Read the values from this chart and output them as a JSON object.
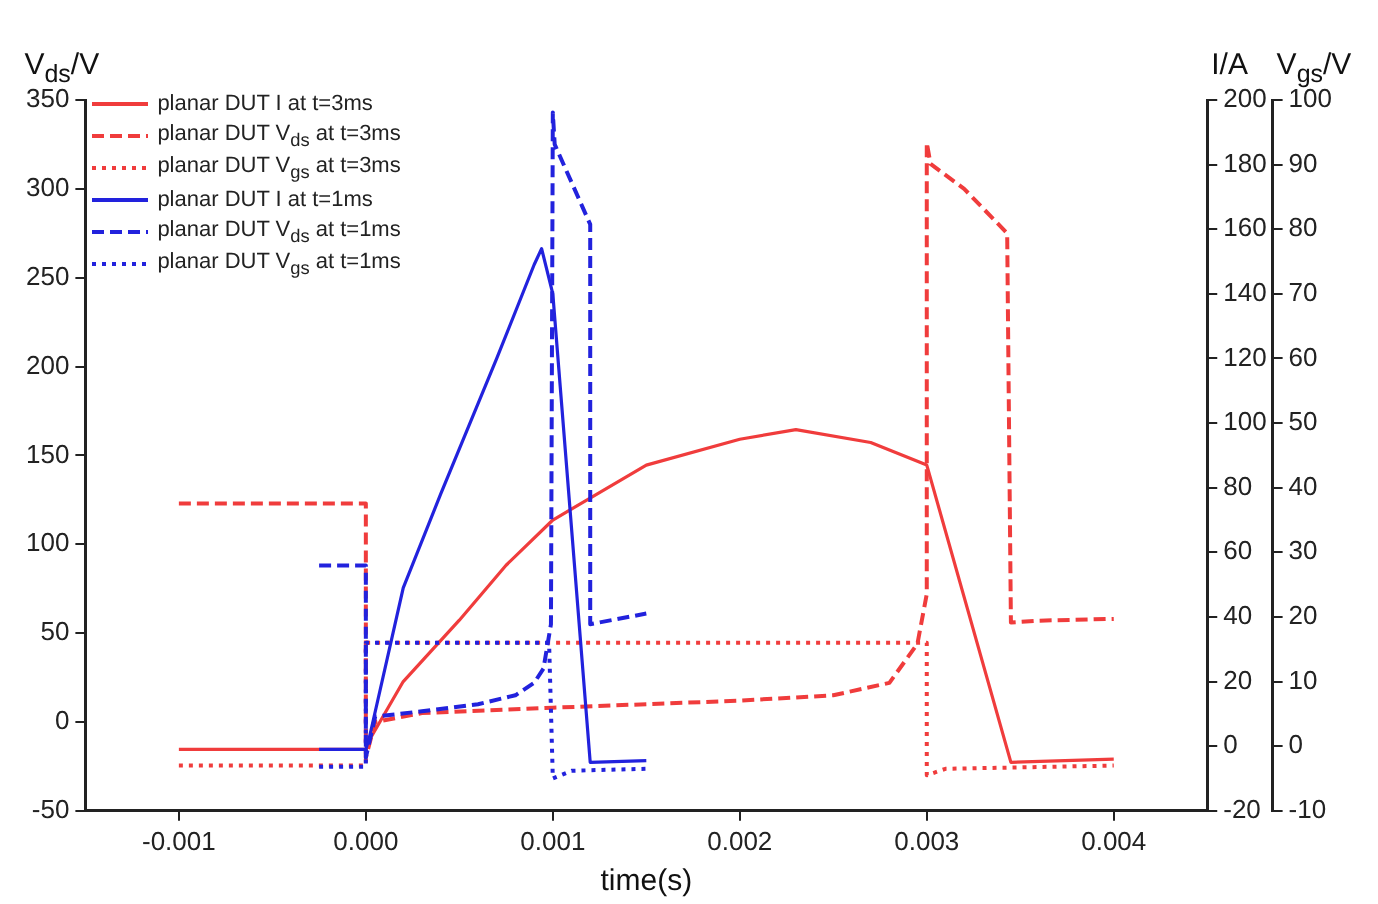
{
  "chart_data": {
    "type": "line",
    "xlabel": "time(s)",
    "ylabel": "V$_{ds}$/V",
    "y2label": "I/A",
    "y3label": "V$_{gs}$/V",
    "xlim": [
      -0.0015,
      0.0045
    ],
    "xticks": [
      {
        "value": -0.001,
        "label": "-0.001"
      },
      {
        "value": 0,
        "label": "0.000"
      },
      {
        "value": 0.001,
        "label": "0.001"
      },
      {
        "value": 0.002,
        "label": "0.002"
      },
      {
        "value": 0.003,
        "label": "0.003"
      },
      {
        "value": 0.004,
        "label": "0.004"
      }
    ],
    "ylim": [
      -50,
      350
    ],
    "yticks": [
      -50,
      0,
      50,
      100,
      150,
      200,
      250,
      300,
      350
    ],
    "y2lim": [
      -20,
      200
    ],
    "y2ticks": [
      -20,
      0,
      20,
      40,
      60,
      80,
      100,
      120,
      140,
      160,
      180,
      200
    ],
    "y3lim": [
      -10,
      100
    ],
    "y3ticks": [
      -10,
      0,
      10,
      20,
      30,
      40,
      50,
      60,
      70,
      80,
      90,
      100
    ],
    "grid": false,
    "legend": "top left",
    "marker": "none",
    "series": [
      {
        "name": "planar DUT I at t=3ms",
        "color": "#f03c3c",
        "line_style": "solid",
        "axis": "y2",
        "x": [
          -0.001,
          0,
          2e-05,
          0.0002,
          0.0005,
          0.00075,
          0.001,
          0.0015,
          0.002,
          0.0023,
          0.0027,
          0.003,
          0.00345,
          0.004
        ],
        "values": [
          -1,
          -1,
          2,
          20,
          39,
          56,
          70,
          87,
          95,
          98,
          94,
          87,
          -5,
          -4
        ]
      },
      {
        "name": "planar DUT V$_{ds}$ at t=3ms",
        "color": "#f03c3c",
        "line_style": "dashed",
        "axis": "y",
        "x": [
          -0.001,
          0,
          0,
          5e-05,
          0.0003,
          0.001,
          0.0015,
          0.002,
          0.0025,
          0.0028,
          0.00295,
          0.003,
          0.003,
          0.00302,
          0.0032,
          0.00343,
          0.00345,
          0.0036,
          0.004
        ],
        "values": [
          123,
          123,
          -20,
          0,
          5,
          8,
          10,
          12,
          15,
          22,
          44,
          72,
          326,
          314,
          300,
          275,
          56,
          57,
          58
        ]
      },
      {
        "name": "planar DUT V$_{gs}$ at t=3ms",
        "color": "#f03c3c",
        "line_style": "dotted",
        "axis": "y3",
        "x": [
          -0.001,
          0,
          0,
          0.003,
          0.003,
          0.0031,
          0.004
        ],
        "values": [
          -3,
          -3,
          16,
          16,
          -4.5,
          -3.5,
          -3
        ]
      },
      {
        "name": "planar DUT I at t=1ms",
        "color": "#2222dd",
        "line_style": "solid",
        "axis": "y2",
        "x": [
          -0.00025,
          0,
          2e-05,
          0.0002,
          0.0004,
          0.0007,
          0.0009,
          0.00094,
          0.001,
          0.0012,
          0.0015
        ],
        "values": [
          -1,
          -1,
          3,
          49,
          78,
          120,
          149,
          154,
          140,
          -5,
          -4.5
        ]
      },
      {
        "name": "planar DUT V$_{ds}$ at t=1ms",
        "color": "#2222dd",
        "line_style": "dashed",
        "axis": "y",
        "x": [
          -0.00025,
          0,
          0,
          5e-05,
          0.0003,
          0.0006,
          0.0008,
          0.0009,
          0.00095,
          0.00099,
          0.001,
          0.00101,
          0.0012,
          0.0012,
          0.0015
        ],
        "values": [
          88,
          88,
          -20,
          3,
          6,
          10,
          15,
          22,
          30,
          55,
          343,
          325,
          280,
          55,
          61
        ]
      },
      {
        "name": "planar DUT V$_{gs}$ at t=1ms",
        "color": "#2222dd",
        "line_style": "dotted",
        "axis": "y3",
        "x": [
          -0.00025,
          0,
          0,
          0.00098,
          0.001,
          0.0011,
          0.0015
        ],
        "values": [
          -3.2,
          -3.2,
          16,
          16,
          -5,
          -3.8,
          -3.5
        ]
      }
    ]
  }
}
